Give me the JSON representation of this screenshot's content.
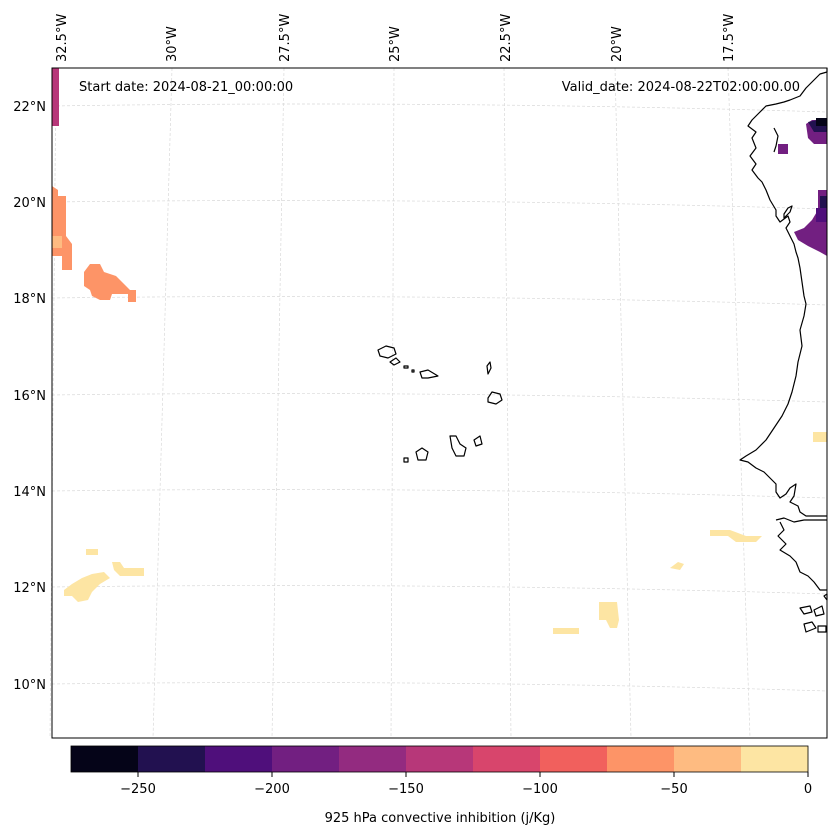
{
  "map": {
    "start_date": "Start date: 2024-08-21_00:00:00",
    "valid_date": "Valid_date: 2024-08-22T02:00:00.00",
    "lon_labels": [
      "32.5°W",
      "30°W",
      "27.5°W",
      "25°W",
      "22.5°W",
      "20°W",
      "17.5°W"
    ],
    "lat_labels": [
      "22°N",
      "20°N",
      "18°N",
      "16°N",
      "14°N",
      "12°N",
      "10°N"
    ]
  },
  "colorbar": {
    "title": "925 hPa convective inhibition (j/Kg)",
    "ticks": [
      "−250",
      "−200",
      "−150",
      "−100",
      "−50",
      "0"
    ],
    "colors": [
      "#050418",
      "#221150",
      "#4f0f7b",
      "#721f81",
      "#932b80",
      "#b73779",
      "#d8456c",
      "#f1605d",
      "#fd9467",
      "#febb81",
      "#fde5a3"
    ]
  },
  "colors": {
    "grid": "#d9d9d9",
    "coast": "#000000",
    "frame": "#000000"
  }
}
